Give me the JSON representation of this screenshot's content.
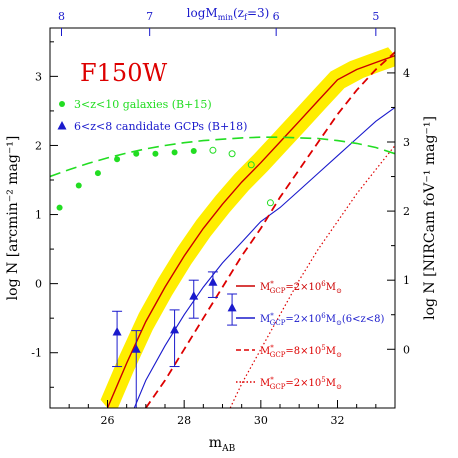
{
  "chart_data": {
    "type": "line",
    "title": "F150W",
    "xlabel": "m",
    "xlabel_sub": "AB",
    "ylabel": "log N [arcmin⁻² mag⁻¹]",
    "ylabel_right": "log N [NIRCam foV⁻¹ mag⁻¹]",
    "top_label_main": "logM",
    "top_label_sub": "min",
    "top_label_paren": "(z",
    "top_label_paren_sub": "f",
    "top_label_end": "=3)",
    "xlim": [
      24.5,
      33.5
    ],
    "ylim": [
      -1.8,
      3.7
    ],
    "grid": false,
    "x_ticks": [
      26,
      28,
      30,
      32
    ],
    "y_ticks": [
      -1,
      0,
      1,
      2,
      3
    ],
    "right_ticks": [
      {
        "label": "0",
        "y": -0.95
      },
      {
        "label": "1",
        "y": 0.05
      },
      {
        "label": "2",
        "y": 1.05
      },
      {
        "label": "3",
        "y": 2.05
      },
      {
        "label": "4",
        "y": 3.05
      }
    ],
    "top_ticks": [
      {
        "label": "8",
        "x": 24.8
      },
      {
        "label": "7",
        "x": 27.1
      },
      {
        "label": "6",
        "x": 30.4
      },
      {
        "label": "5",
        "x": 33.0
      }
    ],
    "series": [
      {
        "name": "3<z<10 galaxies (B+15)",
        "kind": "filled-circles",
        "color": "#22dd22",
        "x": [
          24.75,
          25.25,
          25.75,
          26.25,
          26.75,
          27.25,
          27.75,
          28.25
        ],
        "y": [
          1.1,
          1.42,
          1.6,
          1.8,
          1.88,
          1.88,
          1.9,
          1.92
        ]
      },
      {
        "name": "",
        "kind": "open-circles",
        "color": "#22dd22",
        "x": [
          28.75,
          29.25,
          29.75,
          30.25
        ],
        "y": [
          1.93,
          1.88,
          1.72,
          1.17
        ]
      },
      {
        "name": "6<z<8 candidate GCPs (B+18)",
        "kind": "triangles-with-errors",
        "color": "#1a1acc",
        "x": [
          26.25,
          26.75,
          27.75,
          28.25,
          28.75,
          29.25
        ],
        "y": [
          -0.7,
          -0.95,
          -0.67,
          -0.18,
          0.02,
          -0.35
        ],
        "y_low": [
          -1.2,
          -1.8,
          -1.2,
          -0.5,
          -0.2,
          -0.6
        ],
        "y_high": [
          -0.4,
          -0.68,
          -0.38,
          0.05,
          0.17,
          -0.15
        ]
      },
      {
        "name": "M*_GCP=2×10⁶M⊙",
        "kind": "line-solid-red-with-yellow-band",
        "color": "#cc0000",
        "band_color": "#ffee00",
        "x": [
          26.0,
          26.5,
          27.0,
          27.5,
          28.0,
          28.5,
          29.0,
          29.5,
          30.0,
          30.5,
          31.0,
          31.5,
          32.0,
          32.5,
          33.0,
          33.5
        ],
        "y": [
          -1.8,
          -1.15,
          -0.55,
          -0.05,
          0.4,
          0.8,
          1.15,
          1.47,
          1.75,
          2.05,
          2.35,
          2.65,
          2.95,
          3.1,
          3.2,
          3.3
        ],
        "band_halfwidth": 0.12
      },
      {
        "name": "M*_GCP=2×10⁶M⊙(6<z<8)",
        "kind": "line-solid-blue",
        "color": "#1a1acc",
        "x": [
          26.7,
          27.0,
          27.5,
          28.0,
          28.5,
          29.0,
          29.5,
          30.0,
          30.5,
          31.0,
          31.5,
          32.0,
          32.5,
          33.0,
          33.5
        ],
        "y": [
          -1.8,
          -1.4,
          -0.9,
          -0.45,
          -0.05,
          0.3,
          0.6,
          0.9,
          1.1,
          1.35,
          1.6,
          1.85,
          2.1,
          2.35,
          2.55
        ]
      },
      {
        "name": "M*_GCP=8×10⁵M⊙",
        "kind": "line-dashed-red",
        "color": "#dd0000",
        "x": [
          27.0,
          27.5,
          28.0,
          28.5,
          29.0,
          29.5,
          30.0,
          30.5,
          31.0,
          31.5,
          32.0,
          32.5,
          33.0,
          33.5
        ],
        "y": [
          -1.8,
          -1.4,
          -0.95,
          -0.5,
          -0.05,
          0.4,
          0.8,
          1.25,
          1.65,
          2.05,
          2.45,
          2.8,
          3.1,
          3.35
        ]
      },
      {
        "name": "M*_GCP=2×10⁵M⊙",
        "kind": "line-dotted-red",
        "color": "#dd0000",
        "x": [
          29.2,
          29.5,
          30.0,
          30.5,
          31.0,
          31.5,
          32.0,
          32.5,
          33.0,
          33.5
        ],
        "y": [
          -1.8,
          -1.45,
          -0.95,
          -0.45,
          0.05,
          0.5,
          0.9,
          1.3,
          1.65,
          2.0
        ]
      },
      {
        "name": "",
        "kind": "line-dashed-green",
        "color": "#22dd22",
        "x": [
          24.5,
          25.0,
          25.5,
          26.0,
          26.5,
          27.0,
          27.5,
          28.0,
          28.5,
          29.0,
          29.5,
          30.0,
          30.5,
          31.0,
          31.5,
          32.0,
          32.5,
          33.0,
          33.5
        ],
        "y": [
          1.55,
          1.65,
          1.74,
          1.82,
          1.89,
          1.95,
          2.0,
          2.04,
          2.07,
          2.09,
          2.11,
          2.12,
          2.12,
          2.11,
          2.1,
          2.07,
          2.03,
          1.97,
          1.88
        ]
      }
    ],
    "legend_top": [
      {
        "text": "3<z<10 galaxies (B+15)",
        "color": "#22dd22",
        "marker": "circle"
      },
      {
        "text": "6<z<8 candidate GCPs (B+18)",
        "color": "#1a1acc",
        "marker": "triangle"
      }
    ],
    "legend_bottom": [
      {
        "pre": "M",
        "sup": "*",
        "sub": "GCP",
        "post": "=2×10",
        "exp": "6",
        "unit": "M",
        "unit_sub": "⊙",
        "tail": "",
        "color": "#cc0000",
        "style": "solid"
      },
      {
        "pre": "M",
        "sup": "*",
        "sub": "GCP",
        "post": "=2×10",
        "exp": "6",
        "unit": "M",
        "unit_sub": "⊙",
        "tail": "(6<z<8)",
        "color": "#1a1acc",
        "style": "solid"
      },
      {
        "pre": "M",
        "sup": "*",
        "sub": "GCP",
        "post": "=8×10",
        "exp": "5",
        "unit": "M",
        "unit_sub": "⊙",
        "tail": "",
        "color": "#dd0000",
        "style": "dashed"
      },
      {
        "pre": "M",
        "sup": "*",
        "sub": "GCP",
        "post": "=2×10",
        "exp": "5",
        "unit": "M",
        "unit_sub": "⊙",
        "tail": "",
        "color": "#dd0000",
        "style": "dotted"
      }
    ]
  }
}
